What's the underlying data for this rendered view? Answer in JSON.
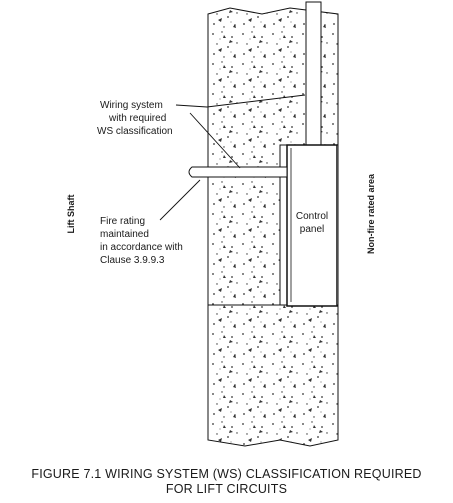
{
  "labels": {
    "wiring": [
      "Wiring system",
      "with required",
      "WS classification"
    ],
    "fire": [
      "Fire rating",
      "maintained",
      "in accordance with",
      "Clause 3.9.9.3"
    ],
    "panel": [
      "Control",
      "panel"
    ],
    "lift_shaft": "Lift Shaft",
    "non_fire": "Non-fire rated area"
  },
  "caption": {
    "line1": "FIGURE  7.1   WIRING SYSTEM (WS) CLASSIFICATION REQUIRED",
    "line2": "FOR LIFT CIRCUITS"
  }
}
